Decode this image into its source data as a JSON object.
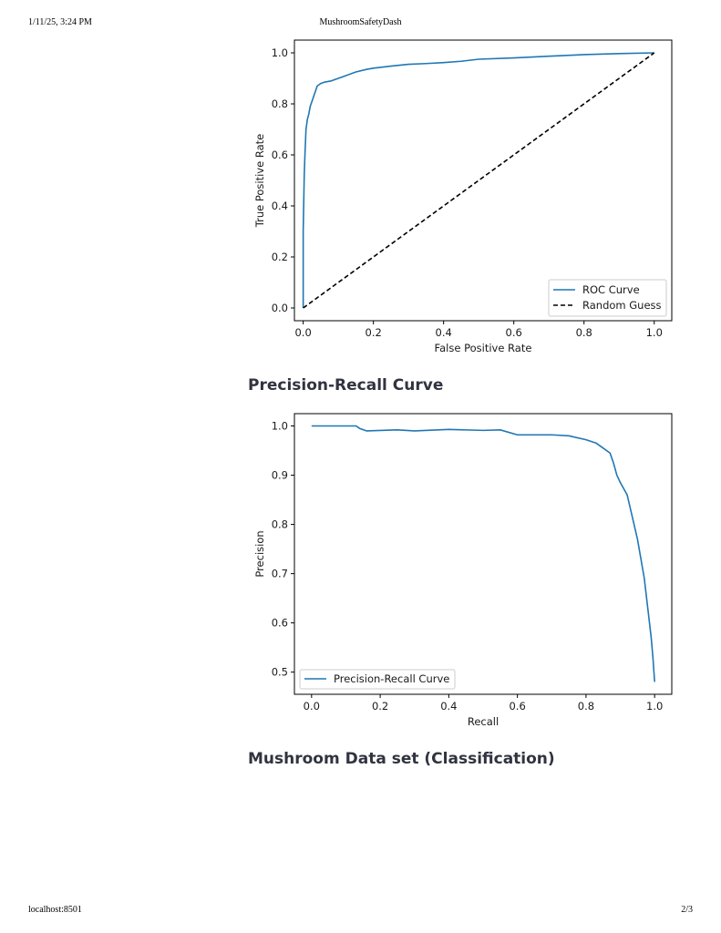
{
  "print_header": {
    "date": "1/11/25, 3:24 PM",
    "title": "MushroomSafetyDash"
  },
  "print_footer": {
    "url": "localhost:8501",
    "page": "2/3"
  },
  "headings": {
    "pr_curve": "Precision-Recall Curve",
    "dataset": "Mushroom Data set (Classification)"
  },
  "chart_data": [
    {
      "type": "line",
      "xlabel": "False Positive Rate",
      "ylabel": "True Positive Rate",
      "xlim": [
        -0.025,
        1.05
      ],
      "ylim": [
        -0.05,
        1.05
      ],
      "xticks": [
        "0.0",
        "0.2",
        "0.4",
        "0.6",
        "0.8",
        "1.0"
      ],
      "yticks": [
        "0.0",
        "0.2",
        "0.4",
        "0.6",
        "0.8",
        "1.0"
      ],
      "grid": false,
      "legend_position": "lower-right",
      "colors": {
        "roc": "#1f77b4",
        "random": "#000000"
      },
      "series": [
        {
          "name": "ROC Curve",
          "style": "solid",
          "x": [
            0.0,
            0.0,
            0.003,
            0.005,
            0.008,
            0.012,
            0.016,
            0.02,
            0.025,
            0.03,
            0.035,
            0.04,
            0.05,
            0.06,
            0.08,
            0.1,
            0.12,
            0.15,
            0.18,
            0.2,
            0.25,
            0.3,
            0.35,
            0.4,
            0.45,
            0.5,
            0.6,
            0.7,
            0.8,
            0.9,
            1.0
          ],
          "y": [
            0.0,
            0.3,
            0.52,
            0.6,
            0.7,
            0.74,
            0.76,
            0.79,
            0.81,
            0.83,
            0.85,
            0.87,
            0.88,
            0.885,
            0.89,
            0.9,
            0.91,
            0.925,
            0.935,
            0.94,
            0.948,
            0.955,
            0.958,
            0.962,
            0.967,
            0.975,
            0.98,
            0.987,
            0.993,
            0.997,
            1.0
          ]
        },
        {
          "name": "Random Guess",
          "style": "dashed",
          "x": [
            0.0,
            1.0
          ],
          "y": [
            0.0,
            1.0
          ]
        }
      ]
    },
    {
      "type": "line",
      "xlabel": "Recall",
      "ylabel": "Precision",
      "xlim": [
        -0.05,
        1.05
      ],
      "ylim": [
        0.455,
        1.025
      ],
      "xticks": [
        "0.0",
        "0.2",
        "0.4",
        "0.6",
        "0.8",
        "1.0"
      ],
      "yticks": [
        "0.5",
        "0.6",
        "0.7",
        "0.8",
        "0.9",
        "1.0"
      ],
      "grid": false,
      "legend_position": "lower-left",
      "colors": {
        "pr": "#1f77b4"
      },
      "series": [
        {
          "name": "Precision-Recall Curve",
          "style": "solid",
          "x": [
            0.0,
            0.13,
            0.14,
            0.16,
            0.25,
            0.3,
            0.4,
            0.5,
            0.55,
            0.6,
            0.7,
            0.75,
            0.8,
            0.83,
            0.85,
            0.87,
            0.88,
            0.89,
            0.9,
            0.92,
            0.93,
            0.94,
            0.95,
            0.96,
            0.965,
            0.97,
            0.975,
            0.98,
            0.985,
            0.99,
            0.995,
            1.0
          ],
          "y": [
            1.0,
            1.0,
            0.995,
            0.99,
            0.992,
            0.99,
            0.993,
            0.991,
            0.992,
            0.982,
            0.982,
            0.98,
            0.972,
            0.965,
            0.955,
            0.945,
            0.925,
            0.9,
            0.885,
            0.86,
            0.83,
            0.8,
            0.77,
            0.73,
            0.71,
            0.69,
            0.66,
            0.63,
            0.6,
            0.57,
            0.53,
            0.48
          ]
        }
      ]
    }
  ]
}
